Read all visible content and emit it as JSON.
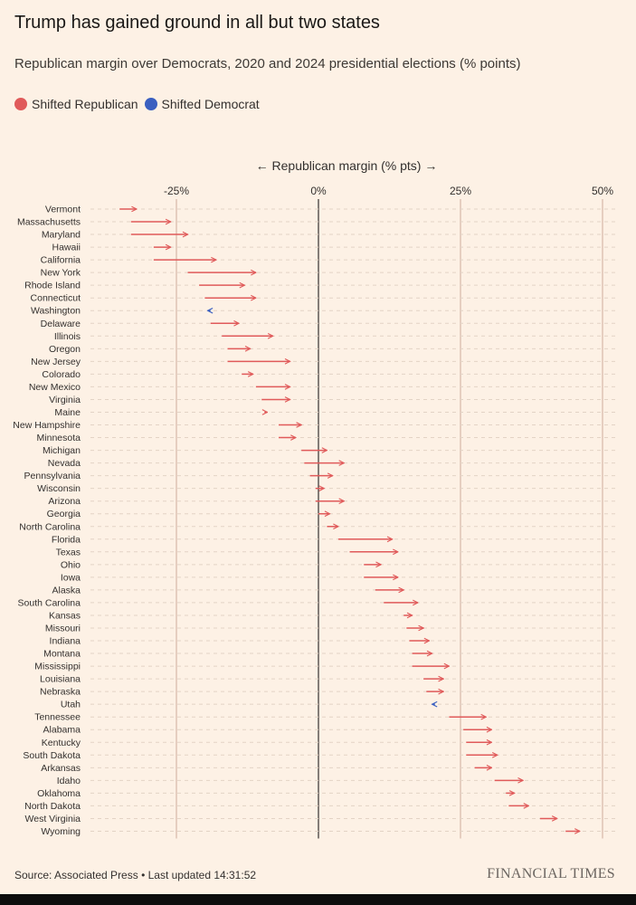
{
  "header": {
    "title": "Trump has gained ground in all but two states",
    "subtitle": "Republican margin over Democrats, 2020 and 2024 presidential elections (% points)"
  },
  "legend": [
    {
      "label": "Shifted Republican",
      "color": "#e05a5a"
    },
    {
      "label": "Shifted Democrat",
      "color": "#3a5fc0"
    }
  ],
  "footer": {
    "source": "Source: Associated Press • Last updated 14:31:52",
    "brand": "FINANCIAL TIMES"
  },
  "chart_data": {
    "type": "arrow-dot",
    "xlabel": "← Republican margin (% pts) →",
    "xlim": [
      -38,
      52
    ],
    "ticks": [
      {
        "value": -25,
        "label": "-25%"
      },
      {
        "value": 0,
        "label": "0%"
      },
      {
        "value": 25,
        "label": "25%"
      },
      {
        "value": 50,
        "label": "50%"
      }
    ],
    "series": [
      {
        "name": "2020",
        "key": "from"
      },
      {
        "name": "2024",
        "key": "to"
      }
    ],
    "states": [
      {
        "name": "Vermont",
        "from": -35,
        "to": -32
      },
      {
        "name": "Massachusetts",
        "from": -33,
        "to": -26
      },
      {
        "name": "Maryland",
        "from": -33,
        "to": -23
      },
      {
        "name": "Hawaii",
        "from": -29,
        "to": -26
      },
      {
        "name": "California",
        "from": -29,
        "to": -18
      },
      {
        "name": "New York",
        "from": -23,
        "to": -11
      },
      {
        "name": "Rhode Island",
        "from": -21,
        "to": -13
      },
      {
        "name": "Connecticut",
        "from": -20,
        "to": -11
      },
      {
        "name": "Washington",
        "from": -19,
        "to": -19.5
      },
      {
        "name": "Delaware",
        "from": -19,
        "to": -14
      },
      {
        "name": "Illinois",
        "from": -17,
        "to": -8
      },
      {
        "name": "Oregon",
        "from": -16,
        "to": -12
      },
      {
        "name": "New Jersey",
        "from": -16,
        "to": -5
      },
      {
        "name": "Colorado",
        "from": -13.5,
        "to": -11.5
      },
      {
        "name": "New Mexico",
        "from": -11,
        "to": -5
      },
      {
        "name": "Virginia",
        "from": -10,
        "to": -5
      },
      {
        "name": "Maine",
        "from": -9.5,
        "to": -9
      },
      {
        "name": "New Hampshire",
        "from": -7,
        "to": -3
      },
      {
        "name": "Minnesota",
        "from": -7,
        "to": -4
      },
      {
        "name": "Michigan",
        "from": -3,
        "to": 1.5
      },
      {
        "name": "Nevada",
        "from": -2.5,
        "to": 4.5
      },
      {
        "name": "Pennsylvania",
        "from": -1.5,
        "to": 2.5
      },
      {
        "name": "Wisconsin",
        "from": -0.5,
        "to": 1
      },
      {
        "name": "Arizona",
        "from": -0.5,
        "to": 4.5
      },
      {
        "name": "Georgia",
        "from": 0,
        "to": 2
      },
      {
        "name": "North Carolina",
        "from": 1.5,
        "to": 3.5
      },
      {
        "name": "Florida",
        "from": 3.5,
        "to": 13
      },
      {
        "name": "Texas",
        "from": 5.5,
        "to": 14
      },
      {
        "name": "Ohio",
        "from": 8,
        "to": 11
      },
      {
        "name": "Iowa",
        "from": 8,
        "to": 14
      },
      {
        "name": "Alaska",
        "from": 10,
        "to": 15
      },
      {
        "name": "South Carolina",
        "from": 11.5,
        "to": 17.5
      },
      {
        "name": "Kansas",
        "from": 15,
        "to": 16.5
      },
      {
        "name": "Missouri",
        "from": 15.5,
        "to": 18.5
      },
      {
        "name": "Indiana",
        "from": 16,
        "to": 19.5
      },
      {
        "name": "Montana",
        "from": 16.5,
        "to": 20
      },
      {
        "name": "Mississippi",
        "from": 16.5,
        "to": 23
      },
      {
        "name": "Louisiana",
        "from": 18.5,
        "to": 22
      },
      {
        "name": "Nebraska",
        "from": 19,
        "to": 22
      },
      {
        "name": "Utah",
        "from": 20.5,
        "to": 20
      },
      {
        "name": "Tennessee",
        "from": 23,
        "to": 29.5
      },
      {
        "name": "Alabama",
        "from": 25.5,
        "to": 30.5
      },
      {
        "name": "Kentucky",
        "from": 26,
        "to": 30.5
      },
      {
        "name": "South Dakota",
        "from": 26,
        "to": 31.5
      },
      {
        "name": "Arkansas",
        "from": 27.5,
        "to": 30.5
      },
      {
        "name": "Idaho",
        "from": 31,
        "to": 36
      },
      {
        "name": "Oklahoma",
        "from": 33,
        "to": 34.5
      },
      {
        "name": "North Dakota",
        "from": 33.5,
        "to": 37
      },
      {
        "name": "West Virginia",
        "from": 39,
        "to": 42
      },
      {
        "name": "Wyoming",
        "from": 43.5,
        "to": 46
      }
    ]
  }
}
